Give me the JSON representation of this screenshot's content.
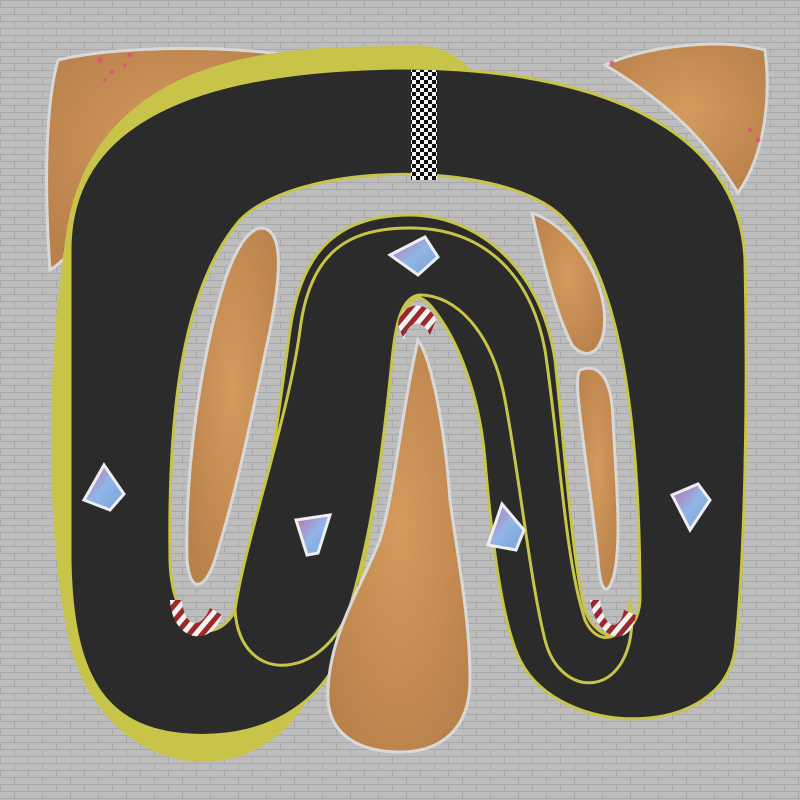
{
  "scene": {
    "type": "top-down race track map",
    "colors": {
      "background": "#bdbdbd",
      "paving_line": "#a9a9a9",
      "asphalt": "#2b2b2b",
      "track_edge": "#c8c44a",
      "sand": "#c9925a",
      "sand_dark": "#b07b43",
      "curb_red": "#9a2a2a",
      "curb_white": "#f2f2f2",
      "boost_pad": "#8fb6e6"
    },
    "track": {
      "name_icon": "asphalt-track"
    },
    "start_finish": {
      "icon": "checkered-flag-line"
    },
    "curbs": [
      {
        "id": "curb-center-top",
        "icon": "striped-curb"
      },
      {
        "id": "curb-left-bottom",
        "icon": "striped-curb"
      },
      {
        "id": "curb-right-bottom",
        "icon": "striped-curb"
      }
    ],
    "boost_pads": [
      {
        "id": "boost-pad-top",
        "icon": "diamond-boost-pad"
      },
      {
        "id": "boost-pad-left-outer",
        "icon": "diamond-boost-pad"
      },
      {
        "id": "boost-pad-left-inner",
        "icon": "diamond-boost-pad"
      },
      {
        "id": "boost-pad-right-inner",
        "icon": "diamond-boost-pad"
      },
      {
        "id": "boost-pad-right-outer",
        "icon": "diamond-boost-pad"
      }
    ],
    "sand_areas": [
      {
        "id": "sand-top-left"
      },
      {
        "id": "sand-top-right"
      },
      {
        "id": "sand-inner-left"
      },
      {
        "id": "sand-inner-right-upper"
      },
      {
        "id": "sand-inner-right-lower"
      },
      {
        "id": "sand-center-bottom"
      }
    ]
  }
}
